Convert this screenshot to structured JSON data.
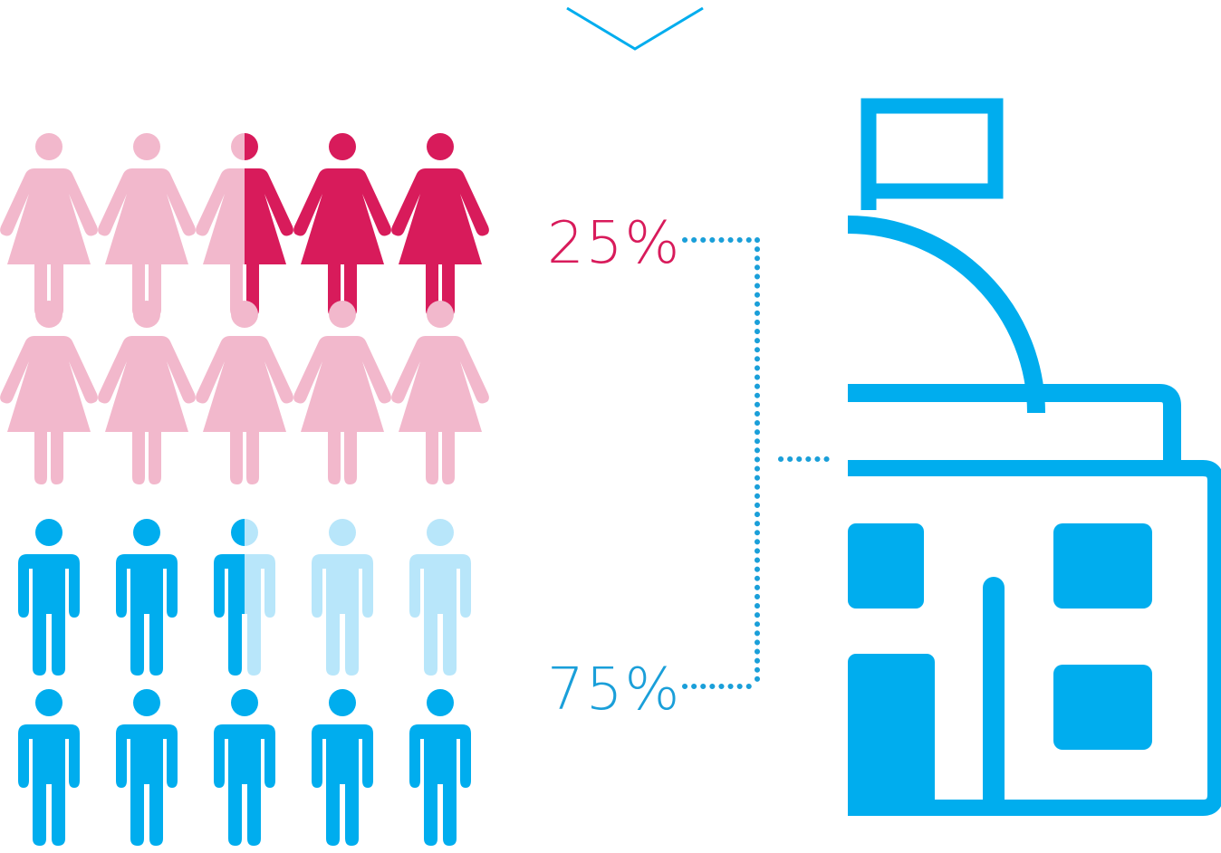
{
  "colors": {
    "female_light": "#f2b8cc",
    "female_dark": "#d81b5b",
    "male_dark": "#00adee",
    "male_light": "#b8e6fa",
    "building": "#00adee",
    "connector": "#1a9fd9",
    "female_text": "#d81b5b",
    "male_text": "#1a9fd9"
  },
  "female_group": {
    "icon": "female-person-icon",
    "total": 10,
    "highlighted": 2.5,
    "label": "25%"
  },
  "male_group": {
    "icon": "male-person-icon",
    "total": 10,
    "highlighted": 7.5,
    "label": "75%"
  },
  "building": {
    "icon": "building-with-flag-icon"
  },
  "top_arrow": {
    "icon": "chevron-down-icon"
  }
}
